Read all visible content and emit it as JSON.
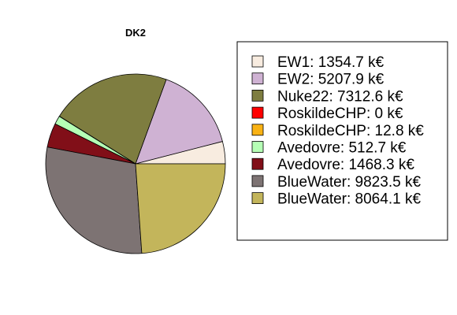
{
  "chart_data": {
    "type": "pie",
    "title": "DK2",
    "legend_position": "right",
    "slices": [
      {
        "label": "EW1: 1354.7 k€",
        "value": 1354.7,
        "color": "#F8ECE0"
      },
      {
        "label": "EW2: 5207.9 k€",
        "value": 5207.9,
        "color": "#CFB2D3"
      },
      {
        "label": "Nuke22: 7312.6 k€",
        "value": 7312.6,
        "color": "#7E7D40"
      },
      {
        "label": "RoskildeCHP: 0 k€",
        "value": 0,
        "color": "#FF0000"
      },
      {
        "label": "RoskildeCHP: 12.8 k€",
        "value": 12.8,
        "color": "#F9B214"
      },
      {
        "label": "Avedovre: 512.7 k€",
        "value": 512.7,
        "color": "#B5FFB5"
      },
      {
        "label": "Avedovre: 1468.3 k€",
        "value": 1468.3,
        "color": "#810F18"
      },
      {
        "label": "BlueWater: 9823.5 k€",
        "value": 9823.5,
        "color": "#7D7373"
      },
      {
        "label": "BlueWater: 8064.1 k€",
        "value": 8064.1,
        "color": "#C3B55B"
      }
    ]
  }
}
